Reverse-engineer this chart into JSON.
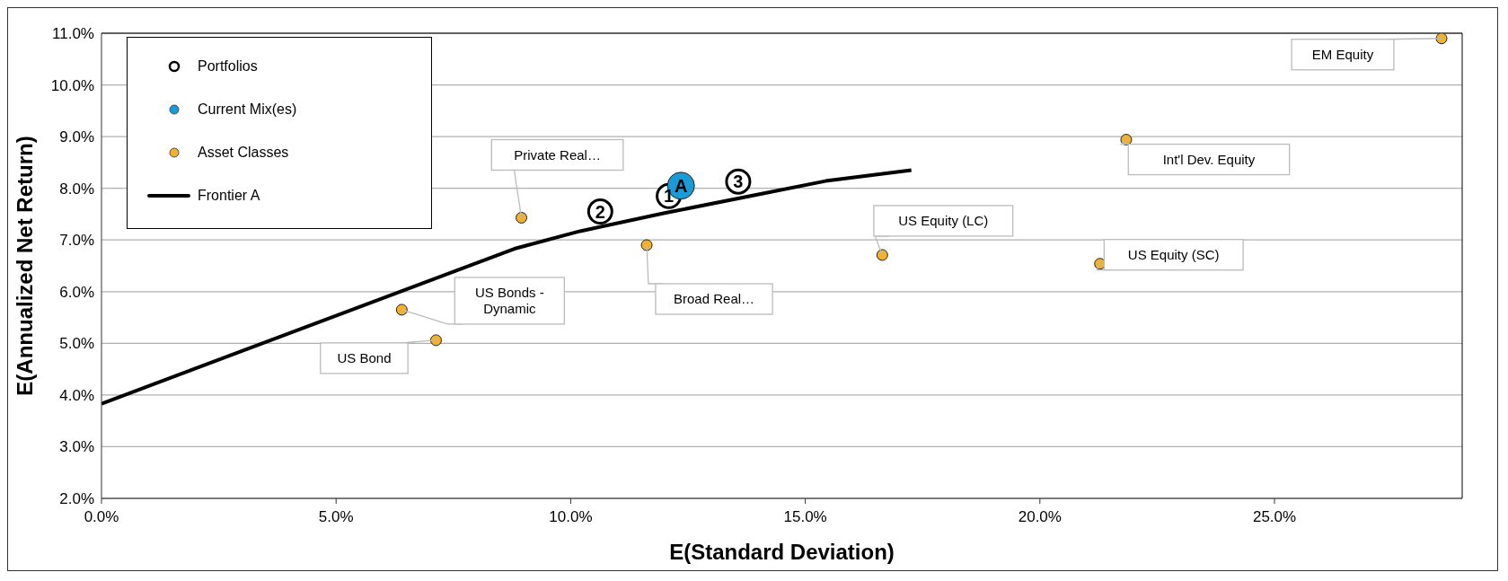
{
  "chart_data": {
    "type": "scatter",
    "xlabel": "E(Standard Deviation)",
    "ylabel": "E(Annualized Net Return)",
    "xlim": [
      0,
      29
    ],
    "ylim": [
      2,
      11
    ],
    "xticks": [
      {
        "value": 0,
        "label": "0.0%"
      },
      {
        "value": 5,
        "label": "5.0%"
      },
      {
        "value": 10,
        "label": "10.0%"
      },
      {
        "value": 15,
        "label": "15.0%"
      },
      {
        "value": 20,
        "label": "20.0%"
      },
      {
        "value": 25,
        "label": "25.0%"
      }
    ],
    "yticks": [
      {
        "value": 2,
        "label": "2.0%"
      },
      {
        "value": 3,
        "label": "3.0%"
      },
      {
        "value": 4,
        "label": "4.0%"
      },
      {
        "value": 5,
        "label": "5.0%"
      },
      {
        "value": 6,
        "label": "6.0%"
      },
      {
        "value": 7,
        "label": "7.0%"
      },
      {
        "value": 8,
        "label": "8.0%"
      },
      {
        "value": 9,
        "label": "9.0%"
      },
      {
        "value": 10,
        "label": "10.0%"
      },
      {
        "value": 11,
        "label": "11.0%"
      }
    ],
    "grid": "y",
    "legend": "top left",
    "marker": "circle",
    "series": [
      {
        "name": "Portfolios",
        "type": "scatter",
        "color": "#000000",
        "x": [
          12.09,
          10.63,
          13.57
        ],
        "values": [
          7.85,
          7.55,
          8.13
        ]
      },
      {
        "name": "Current Mix(es)",
        "type": "scatter",
        "color": "#1a9ad6",
        "x": [
          12.35
        ],
        "values": [
          8.05
        ]
      },
      {
        "name": "Asset Classes",
        "type": "scatter",
        "color": "#f0b030",
        "x": [
          8.95,
          6.4,
          7.13,
          11.62,
          16.64,
          21.28,
          21.84,
          28.56
        ],
        "values": [
          7.43,
          5.65,
          5.06,
          6.9,
          6.71,
          6.54,
          8.94,
          10.9
        ]
      },
      {
        "name": "Frontier A",
        "type": "line",
        "color": "#000000",
        "line_style": "solid",
        "marker": "none",
        "x": [
          0,
          8.8,
          10.2,
          12,
          14,
          15.43,
          17.26
        ],
        "values": [
          3.83,
          6.83,
          7.17,
          7.52,
          7.88,
          8.14,
          8.35
        ]
      }
    ],
    "annotations": [
      {
        "text": "Private Real…",
        "x": 8.95,
        "y": 7.43
      },
      {
        "text": "US Bonds - Dynamic",
        "x": 6.4,
        "y": 5.65
      },
      {
        "text": "US Bond",
        "x": 7.13,
        "y": 5.06
      },
      {
        "text": "Broad Real…",
        "x": 11.62,
        "y": 6.9
      },
      {
        "text": "US Equity (LC)",
        "x": 16.64,
        "y": 6.71
      },
      {
        "text": "US Equity (SC)",
        "x": 21.28,
        "y": 6.54
      },
      {
        "text": "Int'l Dev. Equity",
        "x": 21.84,
        "y": 8.94
      },
      {
        "text": "EM Equity",
        "x": 28.56,
        "y": 10.9
      },
      {
        "text": "1",
        "x": 12.09,
        "y": 7.85
      },
      {
        "text": "2",
        "x": 10.63,
        "y": 7.55
      },
      {
        "text": "3",
        "x": 13.57,
        "y": 8.13
      },
      {
        "text": "A",
        "x": 12.35,
        "y": 8.05
      }
    ]
  }
}
